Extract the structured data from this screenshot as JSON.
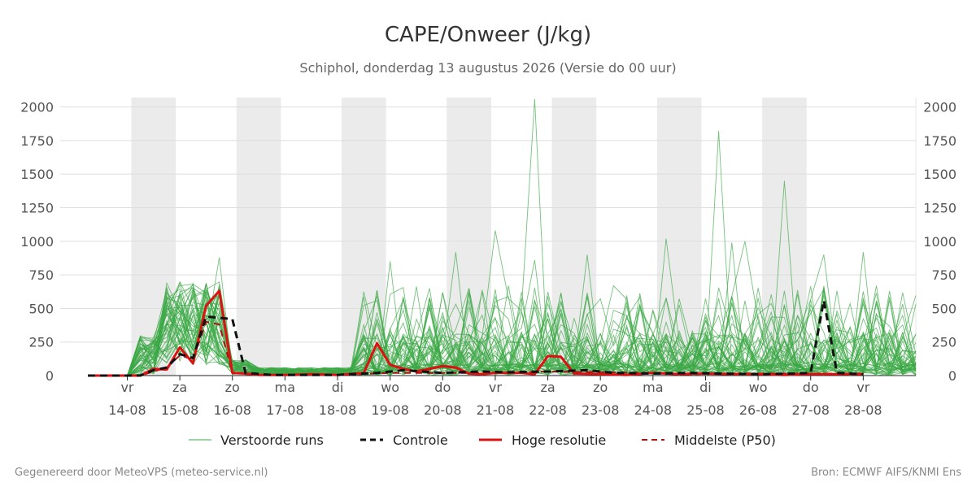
{
  "chart_data": {
    "type": "line",
    "title": "CAPE/Onweer (J/kg)",
    "subtitle": "Schiphol, donderdag 13 augustus 2026 (Versie do 00 uur)",
    "xlabel": "",
    "ylabel": "",
    "ylim": [
      0,
      2070
    ],
    "yticks": [
      0,
      250,
      500,
      750,
      1000,
      1250,
      1500,
      1750,
      2000
    ],
    "grid": true,
    "legend_position": "bottom",
    "x_unit": "day",
    "xlim": [
      -0.75,
      15
    ],
    "x_ticks": [
      {
        "x": 0,
        "day": "vr",
        "date": "14-08"
      },
      {
        "x": 1,
        "day": "za",
        "date": "15-08"
      },
      {
        "x": 2,
        "day": "zo",
        "date": "16-08"
      },
      {
        "x": 3,
        "day": "ma",
        "date": "17-08"
      },
      {
        "x": 4,
        "day": "di",
        "date": "18-08"
      },
      {
        "x": 5,
        "day": "wo",
        "date": "19-08"
      },
      {
        "x": 6,
        "day": "do",
        "date": "20-08"
      },
      {
        "x": 7,
        "day": "vr",
        "date": "21-08"
      },
      {
        "x": 8,
        "day": "za",
        "date": "22-08"
      },
      {
        "x": 9,
        "day": "zo",
        "date": "23-08"
      },
      {
        "x": 10,
        "day": "ma",
        "date": "24-08"
      },
      {
        "x": 11,
        "day": "di",
        "date": "25-08"
      },
      {
        "x": 12,
        "day": "wo",
        "date": "26-08"
      },
      {
        "x": 13,
        "day": "do",
        "date": "27-08"
      },
      {
        "x": 14,
        "day": "vr",
        "date": "28-08"
      }
    ],
    "weekend_bands": [
      [
        0,
        1
      ],
      [
        2,
        3
      ],
      [
        4,
        5
      ],
      [
        6,
        7
      ],
      [
        8,
        9
      ],
      [
        10,
        11
      ],
      [
        12,
        13
      ]
    ],
    "colors": {
      "ensemble": "#3aa845",
      "controle": "#111111",
      "hoge_resolutie": "#dd1111",
      "p50": "#aa1111",
      "band": "#ebebeb",
      "grid": "#dddddd"
    },
    "series": [
      {
        "name": "Controle",
        "style": "dashed",
        "x": [
          -0.75,
          0.25,
          0.5,
          0.75,
          1,
          1.25,
          1.5,
          2,
          2.25,
          2.75,
          3.25,
          4,
          4.25,
          4.75,
          5.25,
          6,
          6.75,
          7.25,
          8,
          8.75,
          9.25,
          10,
          10.75,
          11.25,
          12,
          12.75,
          13,
          13.25,
          13.5,
          14
        ],
        "values": [
          0,
          0,
          40,
          60,
          160,
          130,
          440,
          420,
          20,
          5,
          5,
          5,
          10,
          20,
          40,
          20,
          30,
          25,
          30,
          40,
          20,
          15,
          20,
          15,
          10,
          15,
          20,
          560,
          20,
          10
        ]
      },
      {
        "name": "Hoge resolutie",
        "style": "solid",
        "x": [
          -0.75,
          -0.5,
          0.25,
          0.5,
          0.75,
          1,
          1.25,
          1.5,
          1.75,
          2,
          2.25,
          2.5,
          3,
          3.5,
          4,
          4.5,
          4.75,
          5,
          5.25,
          5.5,
          6,
          6.25,
          6.5,
          6.75,
          7,
          7.5,
          7.75,
          8,
          8.25,
          8.5,
          9,
          9.5,
          10,
          10.5,
          11,
          11.5,
          12,
          12.5,
          13,
          13.5,
          14
        ],
        "values": [
          0,
          0,
          0,
          50,
          45,
          210,
          90,
          520,
          630,
          20,
          15,
          5,
          5,
          10,
          5,
          20,
          240,
          80,
          50,
          30,
          70,
          60,
          15,
          10,
          20,
          20,
          10,
          145,
          140,
          15,
          10,
          5,
          20,
          10,
          15,
          10,
          10,
          5,
          10,
          10,
          10
        ]
      },
      {
        "name": "Middelste (P50)",
        "style": "dashed",
        "x": [
          -0.75,
          0.25,
          0.75,
          1,
          1.25,
          1.5,
          1.75,
          2,
          2.5,
          3,
          4,
          5,
          6,
          7,
          8,
          9,
          10,
          11,
          12,
          13,
          14
        ],
        "values": [
          0,
          0,
          60,
          150,
          120,
          400,
          380,
          20,
          5,
          5,
          5,
          20,
          20,
          20,
          30,
          25,
          20,
          15,
          15,
          15,
          15
        ]
      }
    ],
    "ensemble_count": 50,
    "ensemble_peaks": [
      {
        "x": 1.75,
        "value": 880
      },
      {
        "x": 5,
        "value": 850
      },
      {
        "x": 6.25,
        "value": 920
      },
      {
        "x": 7,
        "value": 1080
      },
      {
        "x": 7.75,
        "value": 860
      },
      {
        "x": 7.75,
        "value": 2060
      },
      {
        "x": 8.75,
        "value": 900
      },
      {
        "x": 10.25,
        "value": 1020
      },
      {
        "x": 11.25,
        "value": 1820
      },
      {
        "x": 11.5,
        "value": 990
      },
      {
        "x": 11.75,
        "value": 1000
      },
      {
        "x": 12.5,
        "value": 1450
      },
      {
        "x": 13.25,
        "value": 900
      },
      {
        "x": 14,
        "value": 920
      }
    ]
  },
  "legend": {
    "ensemble": "Verstoorde runs",
    "controle": "Controle",
    "hoge_resolutie": "Hoge resolutie",
    "p50": "Middelste (P50)"
  },
  "footer": {
    "left": "Gegenereerd door MeteoVPS (meteo-service.nl)",
    "right": "Bron: ECMWF AIFS/KNMI Ens"
  }
}
